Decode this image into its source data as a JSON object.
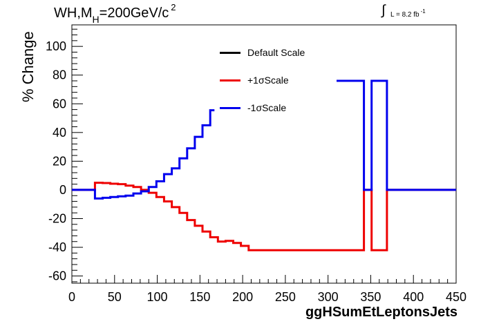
{
  "chart_data": {
    "type": "line",
    "title": "WH,M",
    "title_sub": "H",
    "title_rest": "=200GeV/c",
    "title_sup": "2",
    "lumi_text": "L = 8.2 fb",
    "lumi_sup": "-1",
    "xlabel": "ggHSumEtLeptonsJets",
    "ylabel": "% Change",
    "xlim": [
      0,
      450
    ],
    "ylim": [
      -65,
      115
    ],
    "x_ticks": [
      0,
      50,
      100,
      150,
      200,
      250,
      300,
      350,
      400,
      450
    ],
    "y_ticks": [
      -60,
      -40,
      -20,
      0,
      20,
      40,
      60,
      80,
      100
    ],
    "legend_position": "top-center",
    "series": [
      {
        "name": "Default Scale",
        "color": "#000000",
        "segments": []
      },
      {
        "name": "+1σScale",
        "color": "#ee0000",
        "segments": [
          [
            [
              0,
              0
            ],
            [
              27,
              0
            ],
            [
              27,
              5
            ],
            [
              36,
              5
            ],
            [
              36,
              4.8
            ],
            [
              45,
              4.8
            ],
            [
              45,
              4.3
            ],
            [
              54,
              4.3
            ],
            [
              54,
              4
            ],
            [
              63,
              4
            ],
            [
              63,
              3
            ],
            [
              72,
              3
            ],
            [
              72,
              2
            ],
            [
              81,
              2
            ],
            [
              81,
              0
            ],
            [
              90,
              0
            ],
            [
              90,
              -2
            ],
            [
              99,
              -2
            ],
            [
              99,
              -5
            ],
            [
              108,
              -5
            ],
            [
              108,
              -8
            ],
            [
              117,
              -8
            ],
            [
              117,
              -12
            ],
            [
              126,
              -12
            ],
            [
              126,
              -16
            ],
            [
              135,
              -16
            ],
            [
              135,
              -21
            ],
            [
              144,
              -21
            ],
            [
              144,
              -25
            ],
            [
              153,
              -25
            ],
            [
              153,
              -29
            ],
            [
              162,
              -29
            ],
            [
              162,
              -33
            ],
            [
              171,
              -33
            ],
            [
              171,
              -36
            ],
            [
              180,
              -36
            ],
            [
              180,
              -35.5
            ],
            [
              189,
              -35.5
            ],
            [
              189,
              -37
            ],
            [
              198,
              -37
            ],
            [
              198,
              -39
            ],
            [
              207,
              -39
            ],
            [
              207,
              -42
            ],
            [
              342,
              -42
            ],
            [
              342,
              0
            ],
            [
              351,
              0
            ],
            [
              351,
              -42
            ],
            [
              369,
              -42
            ],
            [
              369,
              0
            ],
            [
              450,
              0
            ]
          ]
        ]
      },
      {
        "name": "-1σScale",
        "color": "#0000ee",
        "segments": [
          [
            [
              0,
              0
            ],
            [
              27,
              0
            ],
            [
              27,
              -6
            ],
            [
              36,
              -6
            ],
            [
              36,
              -5.5
            ],
            [
              45,
              -5.5
            ],
            [
              45,
              -5
            ],
            [
              54,
              -5
            ],
            [
              54,
              -4.5
            ],
            [
              63,
              -4.5
            ],
            [
              63,
              -4
            ],
            [
              72,
              -4
            ],
            [
              72,
              -2.5
            ],
            [
              81,
              -2.5
            ],
            [
              81,
              -1
            ],
            [
              90,
              -1
            ],
            [
              90,
              2
            ],
            [
              99,
              2
            ],
            [
              99,
              6
            ],
            [
              108,
              6
            ],
            [
              108,
              11
            ],
            [
              117,
              11
            ],
            [
              117,
              15
            ],
            [
              126,
              15
            ],
            [
              126,
              22
            ],
            [
              135,
              22
            ],
            [
              135,
              29
            ],
            [
              144,
              29
            ],
            [
              144,
              37
            ],
            [
              153,
              37
            ],
            [
              153,
              45
            ],
            [
              162,
              45
            ],
            [
              162,
              55.5
            ],
            [
              167,
              55.5
            ]
          ],
          [
            [
              310,
              76
            ],
            [
              342,
              76
            ],
            [
              342,
              0
            ],
            [
              351,
              0
            ],
            [
              351,
              76
            ],
            [
              369,
              76
            ],
            [
              369,
              0
            ],
            [
              450,
              0
            ]
          ]
        ]
      }
    ]
  }
}
